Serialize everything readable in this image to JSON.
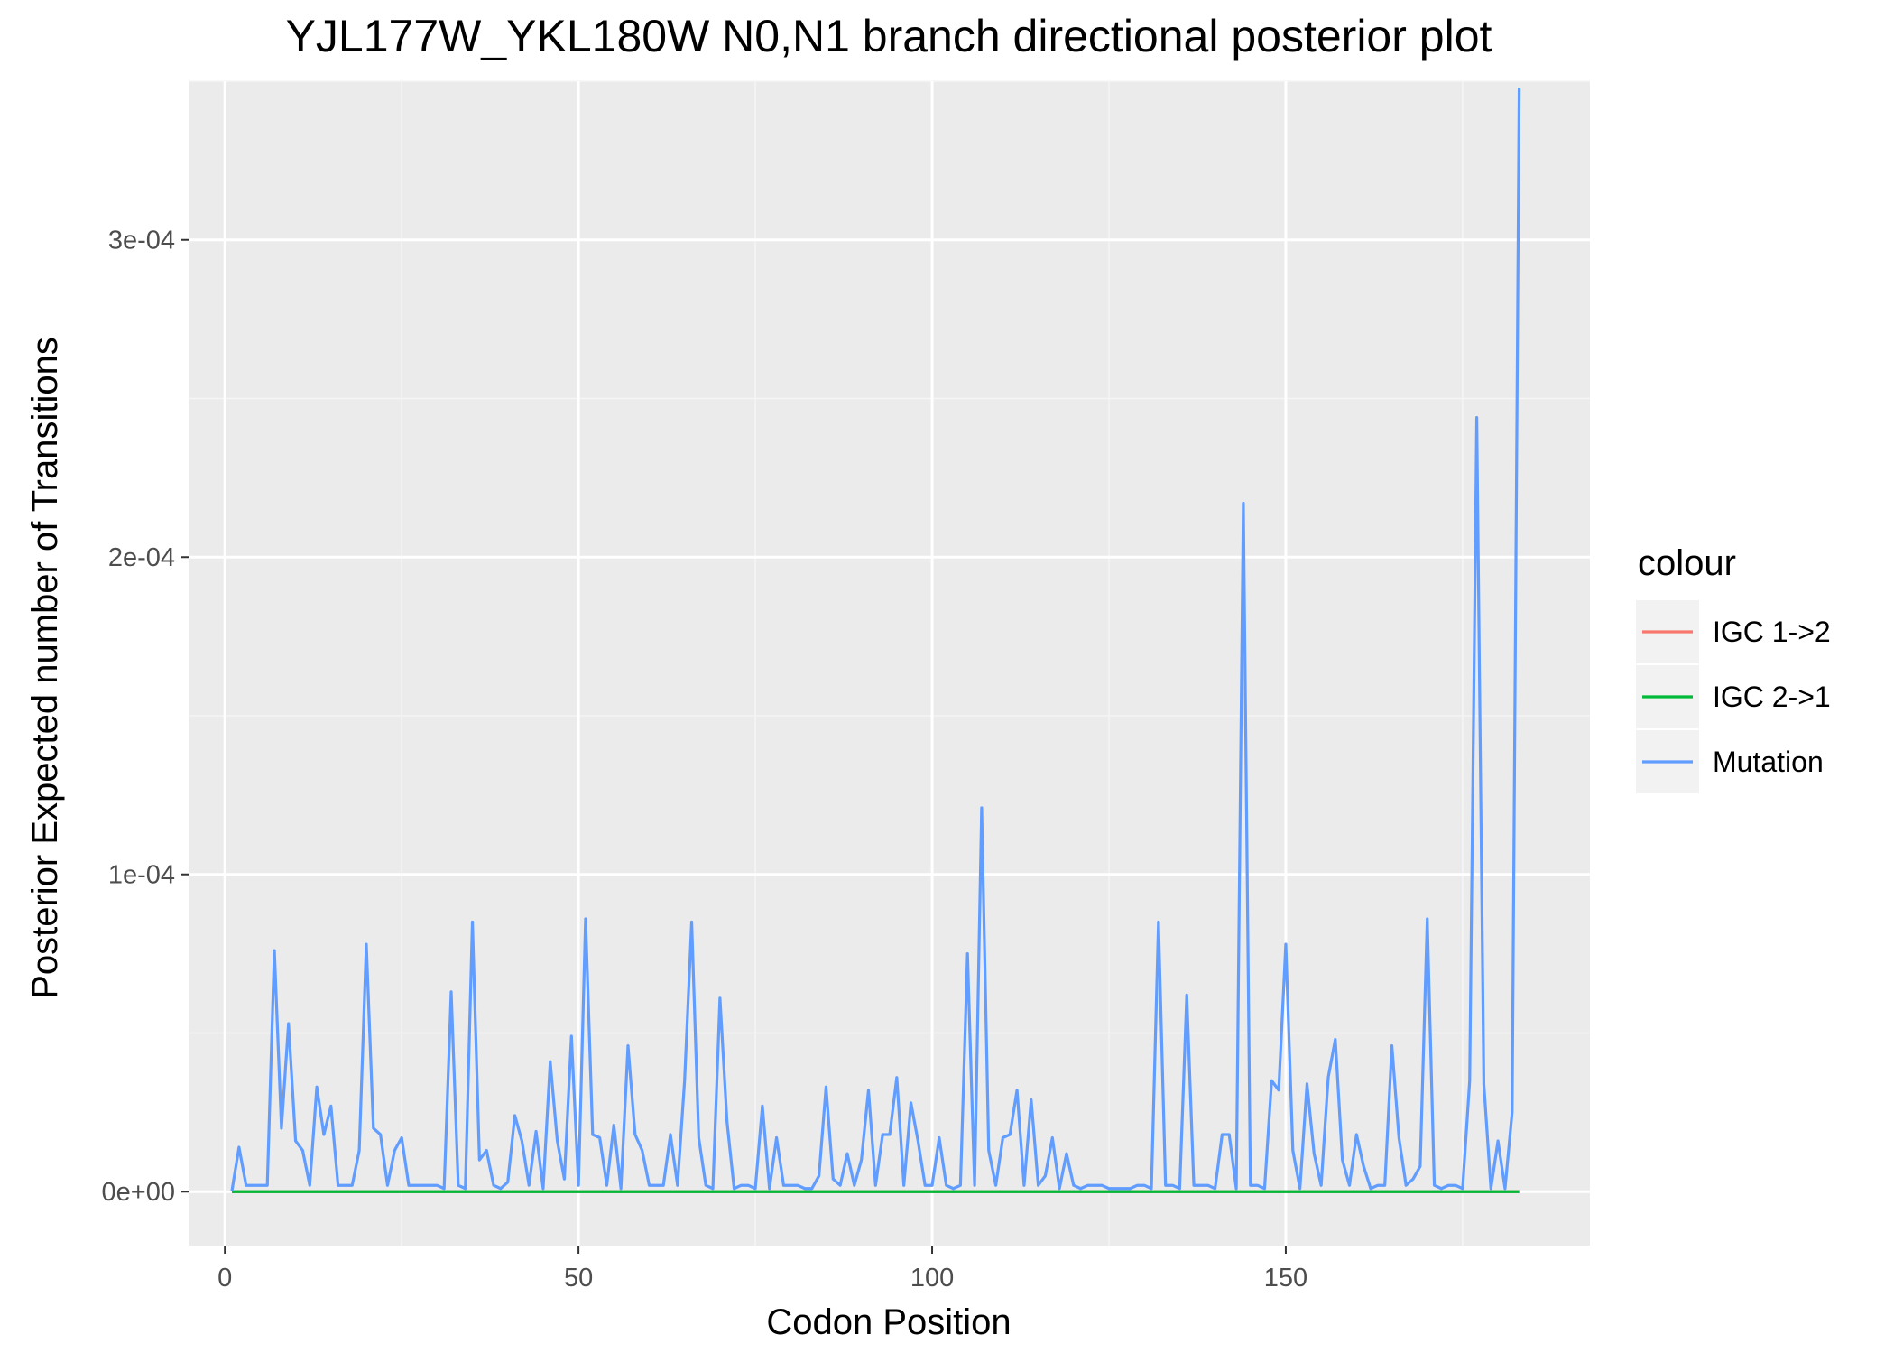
{
  "chart_data": {
    "type": "line",
    "title": "YJL177W_YKL180W N0,N1 branch directional posterior plot",
    "xlabel": "Codon Position",
    "ylabel": "Posterior Expected number of Transitions",
    "xlim": [
      -5,
      193
    ],
    "ylim": [
      -1.7e-05,
      0.00035
    ],
    "x_ticks": [
      0,
      50,
      100,
      150
    ],
    "x_tick_labels": [
      "0",
      "50",
      "100",
      "150"
    ],
    "y_ticks": [
      0,
      0.0001,
      0.0002,
      0.0003
    ],
    "y_tick_labels": [
      "0e+00",
      "1e-04",
      "2e-04",
      "3e-04"
    ],
    "grid": true,
    "legend": {
      "title": "colour",
      "position": "right"
    },
    "x": [
      1,
      2,
      3,
      4,
      5,
      6,
      7,
      8,
      9,
      10,
      11,
      12,
      13,
      14,
      15,
      16,
      17,
      18,
      19,
      20,
      21,
      22,
      23,
      24,
      25,
      26,
      27,
      28,
      29,
      30,
      31,
      32,
      33,
      34,
      35,
      36,
      37,
      38,
      39,
      40,
      41,
      42,
      43,
      44,
      45,
      46,
      47,
      48,
      49,
      50,
      51,
      52,
      53,
      54,
      55,
      56,
      57,
      58,
      59,
      60,
      61,
      62,
      63,
      64,
      65,
      66,
      67,
      68,
      69,
      70,
      71,
      72,
      73,
      74,
      75,
      76,
      77,
      78,
      79,
      80,
      81,
      82,
      83,
      84,
      85,
      86,
      87,
      88,
      89,
      90,
      91,
      92,
      93,
      94,
      95,
      96,
      97,
      98,
      99,
      100,
      101,
      102,
      103,
      104,
      105,
      106,
      107,
      108,
      109,
      110,
      111,
      112,
      113,
      114,
      115,
      116,
      117,
      118,
      119,
      120,
      121,
      122,
      123,
      124,
      125,
      126,
      127,
      128,
      129,
      130,
      131,
      132,
      133,
      134,
      135,
      136,
      137,
      138,
      139,
      140,
      141,
      142,
      143,
      144,
      145,
      146,
      147,
      148,
      149,
      150,
      151,
      152,
      153,
      154,
      155,
      156,
      157,
      158,
      159,
      160,
      161,
      162,
      163,
      164,
      165,
      166,
      167,
      168,
      169,
      170,
      171,
      172,
      173,
      174,
      175,
      176,
      177,
      178,
      179,
      180,
      181,
      182,
      183
    ],
    "series": [
      {
        "name": "IGC 1->2",
        "color": "#F8766D",
        "values": [
          0,
          0,
          0,
          0,
          0,
          0,
          0,
          0,
          0,
          0,
          0,
          0,
          0,
          0,
          0,
          0,
          0,
          0,
          0,
          0,
          0,
          0,
          0,
          0,
          0,
          0,
          0,
          0,
          0,
          0,
          0,
          0,
          0,
          0,
          0,
          0,
          0,
          0,
          0,
          0,
          0,
          0,
          0,
          0,
          0,
          0,
          0,
          0,
          0,
          0,
          0,
          0,
          0,
          0,
          0,
          0,
          0,
          0,
          0,
          0,
          0,
          0,
          0,
          0,
          0,
          0,
          0,
          0,
          0,
          0,
          0,
          0,
          0,
          0,
          0,
          0,
          0,
          0,
          0,
          0,
          0,
          0,
          0,
          0,
          0,
          0,
          0,
          0,
          0,
          0,
          0,
          0,
          0,
          0,
          0,
          0,
          0,
          0,
          0,
          0,
          0,
          0,
          0,
          0,
          0,
          0,
          0,
          0,
          0,
          0,
          0,
          0,
          0,
          0,
          0,
          0,
          0,
          0,
          0,
          0,
          0,
          0,
          0,
          0,
          0,
          0,
          0,
          0,
          0,
          0,
          0,
          0,
          0,
          0,
          0,
          0,
          0,
          0,
          0,
          0,
          0,
          0,
          0,
          0,
          0,
          0,
          0,
          0,
          0,
          0,
          0,
          0,
          0,
          0,
          0,
          0,
          0,
          0,
          0,
          0,
          0,
          0,
          0,
          0,
          0,
          0,
          0,
          0,
          0,
          0,
          0,
          0,
          0,
          0,
          0,
          0,
          0,
          0,
          0,
          0,
          0,
          0,
          0
        ]
      },
      {
        "name": "IGC 2->1",
        "color": "#00BA38",
        "values": [
          0,
          0,
          0,
          0,
          0,
          0,
          0,
          0,
          0,
          0,
          0,
          0,
          0,
          0,
          0,
          0,
          0,
          0,
          0,
          0,
          0,
          0,
          0,
          0,
          0,
          0,
          0,
          0,
          0,
          0,
          0,
          0,
          0,
          0,
          0,
          0,
          0,
          0,
          0,
          0,
          0,
          0,
          0,
          0,
          0,
          0,
          0,
          0,
          0,
          0,
          0,
          0,
          0,
          0,
          0,
          0,
          0,
          0,
          0,
          0,
          0,
          0,
          0,
          0,
          0,
          0,
          0,
          0,
          0,
          0,
          0,
          0,
          0,
          0,
          0,
          0,
          0,
          0,
          0,
          0,
          0,
          0,
          0,
          0,
          0,
          0,
          0,
          0,
          0,
          0,
          0,
          0,
          0,
          0,
          0,
          0,
          0,
          0,
          0,
          0,
          0,
          0,
          0,
          0,
          0,
          0,
          0,
          0,
          0,
          0,
          0,
          0,
          0,
          0,
          0,
          0,
          0,
          0,
          0,
          0,
          0,
          0,
          0,
          0,
          0,
          0,
          0,
          0,
          0,
          0,
          0,
          0,
          0,
          0,
          0,
          0,
          0,
          0,
          0,
          0,
          0,
          0,
          0,
          0,
          0,
          0,
          0,
          0,
          0,
          0,
          0,
          0,
          0,
          0,
          0,
          0,
          0,
          0,
          0,
          0,
          0,
          0,
          0,
          0,
          0,
          0,
          0,
          0,
          0,
          0,
          0,
          0,
          0,
          0,
          0,
          0,
          0,
          0,
          0,
          0,
          0,
          0,
          0
        ]
      },
      {
        "name": "Mutation",
        "color": "#619CFF",
        "values": [
          3e-07,
          1.4e-05,
          2e-06,
          2e-06,
          2e-06,
          2e-06,
          7.6e-05,
          2e-05,
          5.3e-05,
          1.6e-05,
          1.3e-05,
          2e-06,
          3.3e-05,
          1.8e-05,
          2.7e-05,
          2e-06,
          2e-06,
          2e-06,
          1.3e-05,
          7.8e-05,
          2e-05,
          1.8e-05,
          2e-06,
          1.3e-05,
          1.7e-05,
          2e-06,
          2e-06,
          2e-06,
          2e-06,
          2e-06,
          1e-06,
          6.3e-05,
          2e-06,
          1e-06,
          8.5e-05,
          1e-05,
          1.3e-05,
          2e-06,
          1e-06,
          3e-06,
          2.4e-05,
          1.6e-05,
          2e-06,
          1.9e-05,
          1e-06,
          4.1e-05,
          1.6e-05,
          4e-06,
          4.9e-05,
          2e-06,
          8.6e-05,
          1.8e-05,
          1.7e-05,
          2e-06,
          2.1e-05,
          1e-06,
          4.6e-05,
          1.8e-05,
          1.3e-05,
          2e-06,
          2e-06,
          2e-06,
          1.8e-05,
          2e-06,
          3.5e-05,
          8.5e-05,
          1.7e-05,
          2e-06,
          1e-06,
          6.1e-05,
          2.2e-05,
          1e-06,
          2e-06,
          2e-06,
          1e-06,
          2.7e-05,
          1e-06,
          1.7e-05,
          2e-06,
          2e-06,
          2e-06,
          1e-06,
          1e-06,
          5e-06,
          3.3e-05,
          4e-06,
          2e-06,
          1.2e-05,
          2e-06,
          1e-05,
          3.2e-05,
          2e-06,
          1.8e-05,
          1.8e-05,
          3.6e-05,
          2e-06,
          2.8e-05,
          1.6e-05,
          2e-06,
          2e-06,
          1.7e-05,
          2e-06,
          1e-06,
          2e-06,
          7.5e-05,
          2e-06,
          0.000121,
          1.3e-05,
          2e-06,
          1.7e-05,
          1.8e-05,
          3.2e-05,
          2e-06,
          2.9e-05,
          2e-06,
          5e-06,
          1.7e-05,
          1e-06,
          1.2e-05,
          2e-06,
          1e-06,
          2e-06,
          2e-06,
          2e-06,
          1e-06,
          1e-06,
          1e-06,
          1e-06,
          2e-06,
          2e-06,
          1e-06,
          8.5e-05,
          2e-06,
          2e-06,
          1e-06,
          6.2e-05,
          2e-06,
          2e-06,
          2e-06,
          1e-06,
          1.8e-05,
          1.8e-05,
          1e-06,
          0.000217,
          2e-06,
          2e-06,
          1e-06,
          3.5e-05,
          3.2e-05,
          7.8e-05,
          1.3e-05,
          1e-06,
          3.4e-05,
          1.2e-05,
          2e-06,
          3.6e-05,
          4.8e-05,
          1e-05,
          2e-06,
          1.8e-05,
          8e-06,
          1e-06,
          2e-06,
          2e-06,
          4.6e-05,
          1.7e-05,
          2e-06,
          4e-06,
          8e-06,
          8.6e-05,
          2e-06,
          1e-06,
          2e-06,
          2e-06,
          1e-06,
          3.5e-05,
          0.000244,
          3.4e-05,
          1e-06,
          1.6e-05,
          1e-06,
          2.5e-05,
          0.000348
        ]
      }
    ]
  }
}
